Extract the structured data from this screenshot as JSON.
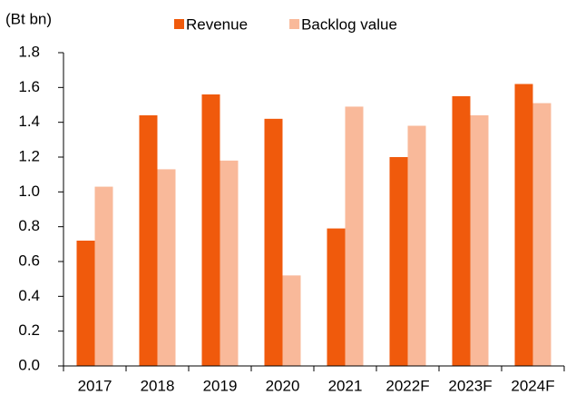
{
  "chart_data": {
    "type": "bar",
    "y_label": "(Bt bn)",
    "categories": [
      "2017",
      "2018",
      "2019",
      "2020",
      "2021",
      "2022F",
      "2023F",
      "2024F"
    ],
    "series": [
      {
        "name": "Revenue",
        "color": "#f05a0c",
        "values": [
          0.72,
          1.44,
          1.56,
          1.42,
          0.79,
          1.2,
          1.55,
          1.62
        ]
      },
      {
        "name": "Backlog value",
        "color": "#f9b99a",
        "values": [
          1.03,
          1.13,
          1.18,
          0.52,
          1.49,
          1.38,
          1.44,
          1.51
        ]
      }
    ],
    "ylim": [
      0,
      1.8
    ],
    "yticks": [
      {
        "value": 0,
        "label": "0.0"
      },
      0.2,
      0.4,
      0.6,
      0.8,
      {
        "value": 1,
        "label": "1.0"
      },
      1.2,
      1.4,
      1.6,
      1.8
    ],
    "legend": "top",
    "grid": false
  }
}
